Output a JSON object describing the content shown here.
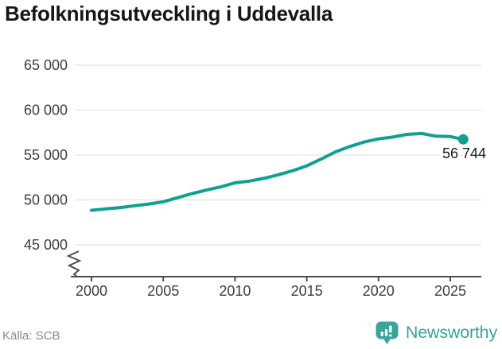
{
  "title": "Befolkningsutveckling i Uddevalla",
  "source": "Källa: SCB",
  "logo": {
    "name": "Newsworthy",
    "color": "#3aa39a",
    "icon": "bar-chart-speech-bubble-icon"
  },
  "colors": {
    "line": "#10a090",
    "grid": "#dcdcdc",
    "axis": "#4d4d4d",
    "tick_text": "#3d3d3d",
    "title_text": "#161616",
    "source_text": "#8a8a8a",
    "label_text": "#1a1a1a",
    "background": "#ffffff"
  },
  "chart_data": {
    "type": "line",
    "title": "Befolkningsutveckling i Uddevalla",
    "xlabel": "",
    "ylabel": "",
    "x": [
      2000,
      2001,
      2002,
      2003,
      2004,
      2005,
      2006,
      2007,
      2008,
      2009,
      2010,
      2011,
      2012,
      2013,
      2014,
      2015,
      2016,
      2017,
      2018,
      2019,
      2020,
      2021,
      2022,
      2023,
      2024,
      2025,
      2025.9
    ],
    "values": [
      48850,
      49000,
      49150,
      49350,
      49550,
      49800,
      50250,
      50700,
      51100,
      51450,
      51900,
      52100,
      52400,
      52800,
      53250,
      53800,
      54550,
      55350,
      55950,
      56450,
      56800,
      57000,
      57300,
      57400,
      57100,
      57050,
      56744
    ],
    "x_ticks": [
      2000,
      2005,
      2010,
      2015,
      2020,
      2025
    ],
    "x_tick_labels": [
      "2000",
      "2005",
      "2010",
      "2015",
      "2020",
      "2025"
    ],
    "y_ticks": [
      45000,
      50000,
      55000,
      60000,
      65000
    ],
    "y_tick_labels": [
      "45 000",
      "50 000",
      "55 000",
      "60 000",
      "65 000"
    ],
    "ylim": [
      45000,
      65000
    ],
    "xlim": [
      2000,
      2026
    ],
    "grid": "horizontal",
    "legend": "none",
    "axis_break": true,
    "last_point_label": "56 744",
    "last_point_value": 56744
  }
}
